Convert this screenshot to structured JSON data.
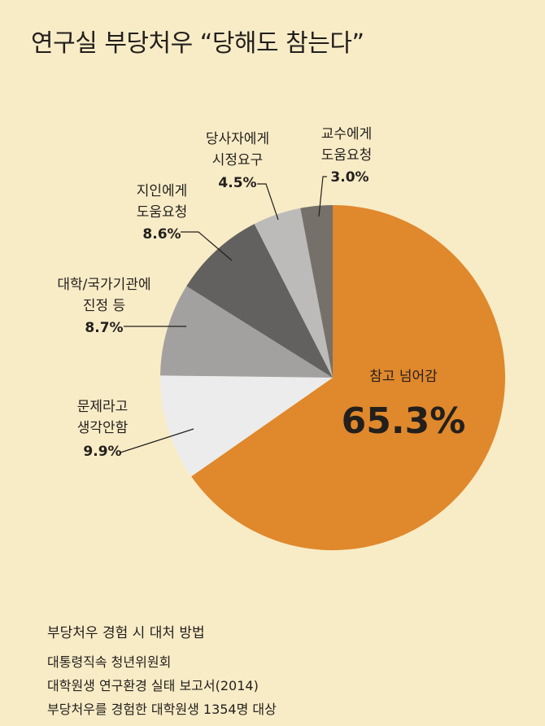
{
  "title": "연구실 부당처우 “당해도 참는다”",
  "chart_data": {
    "type": "pie",
    "slices": [
      {
        "label_lines": [
          "참고 넘어감"
        ],
        "value_text": "65.3%",
        "value": 65.3,
        "color": "#e0882c"
      },
      {
        "label_lines": [
          "문제라고",
          "생각안함"
        ],
        "value_text": "9.9%",
        "value": 9.9,
        "color": "#ececec"
      },
      {
        "label_lines": [
          "대학/국가기관에",
          "진정 등"
        ],
        "value_text": "8.7%",
        "value": 8.7,
        "color": "#a3a1a0"
      },
      {
        "label_lines": [
          "지인에게",
          "도움요청"
        ],
        "value_text": "8.6%",
        "value": 8.6,
        "color": "#626160"
      },
      {
        "label_lines": [
          "당사자에게",
          "시정요구"
        ],
        "value_text": "4.5%",
        "value": 4.5,
        "color": "#bdbbba"
      },
      {
        "label_lines": [
          "교수에게",
          "도움요청"
        ],
        "value_text": "3.0%",
        "value": 3.0,
        "color": "#76706a"
      }
    ]
  },
  "footer": {
    "heading": "부당처우 경험 시 대처 방법",
    "source_lines": [
      "대통령직속 청년위원회",
      "대학원생 연구환경 실태 보고서(2014)",
      "부당처우를 경험한 대학원생 1354명 대상"
    ]
  }
}
